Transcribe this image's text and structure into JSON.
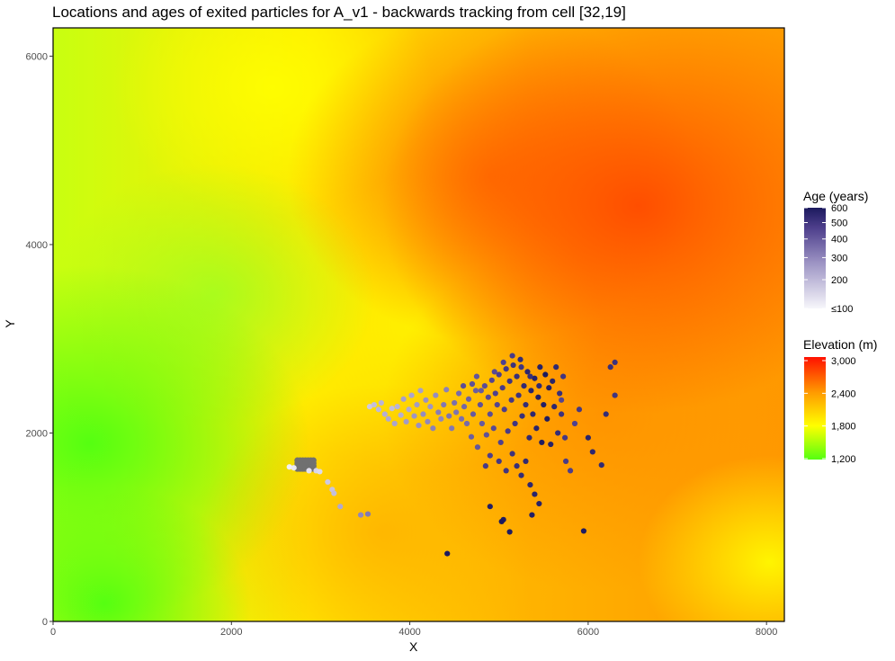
{
  "chart_data": {
    "type": "scatter",
    "title": "Locations and ages of exited particles for A_v1 - backwards tracking from cell [32,19]",
    "xlabel": "X",
    "ylabel": "Y",
    "xlim": [
      0,
      8200
    ],
    "ylim": [
      0,
      6300
    ],
    "x_ticks": [
      0,
      2000,
      4000,
      6000,
      8000
    ],
    "y_ticks": [
      0,
      2000,
      4000,
      6000
    ],
    "grid": false,
    "background_raster": {
      "name": "Elevation (m)",
      "scale_ticks": [
        "1,200",
        "1,800",
        "2,400",
        "3,000"
      ],
      "scale_values": [
        1200,
        1800,
        2400,
        3000
      ],
      "colors": [
        "#55ff11",
        "#ffff00",
        "#ff9900",
        "#ff1100"
      ]
    },
    "point_scale": {
      "name": "Age (years)",
      "scale_ticks": [
        "≤100",
        "200",
        "300",
        "400",
        "500",
        "600"
      ],
      "scale_values": [
        100,
        200,
        300,
        400,
        500,
        600
      ],
      "colors": [
        "#f7f7fb",
        "#1c1a5e"
      ]
    },
    "grey_cluster": {
      "x": 2830,
      "y": 1670
    },
    "points": [
      [
        2650,
        1640,
        110
      ],
      [
        2700,
        1630,
        120
      ],
      [
        2870,
        1600,
        130
      ],
      [
        2950,
        1600,
        150
      ],
      [
        2990,
        1590,
        140
      ],
      [
        3080,
        1480,
        170
      ],
      [
        3130,
        1400,
        180
      ],
      [
        3150,
        1360,
        190
      ],
      [
        3220,
        1220,
        230
      ],
      [
        3450,
        1130,
        300
      ],
      [
        3530,
        1140,
        330
      ],
      [
        3550,
        2280,
        170
      ],
      [
        3600,
        2300,
        190
      ],
      [
        3650,
        2250,
        200
      ],
      [
        3680,
        2320,
        210
      ],
      [
        3720,
        2200,
        220
      ],
      [
        3760,
        2150,
        230
      ],
      [
        3800,
        2260,
        190
      ],
      [
        3830,
        2100,
        240
      ],
      [
        3860,
        2280,
        210
      ],
      [
        3900,
        2190,
        220
      ],
      [
        3930,
        2360,
        250
      ],
      [
        3960,
        2120,
        260
      ],
      [
        3990,
        2250,
        230
      ],
      [
        4020,
        2400,
        240
      ],
      [
        4050,
        2180,
        270
      ],
      [
        4080,
        2300,
        260
      ],
      [
        4100,
        2080,
        280
      ],
      [
        4120,
        2450,
        250
      ],
      [
        4150,
        2200,
        290
      ],
      [
        4180,
        2350,
        280
      ],
      [
        4200,
        2120,
        300
      ],
      [
        4230,
        2280,
        270
      ],
      [
        4260,
        2050,
        310
      ],
      [
        4290,
        2400,
        290
      ],
      [
        4320,
        2220,
        320
      ],
      [
        4350,
        2150,
        300
      ],
      [
        4380,
        2300,
        330
      ],
      [
        4410,
        2460,
        310
      ],
      [
        4440,
        2180,
        340
      ],
      [
        4470,
        2050,
        330
      ],
      [
        4500,
        2320,
        350
      ],
      [
        4520,
        2220,
        340
      ],
      [
        4550,
        2420,
        360
      ],
      [
        4580,
        2150,
        350
      ],
      [
        4610,
        2280,
        370
      ],
      [
        4640,
        2100,
        360
      ],
      [
        4660,
        2360,
        380
      ],
      [
        4690,
        1960,
        390
      ],
      [
        4710,
        2200,
        400
      ],
      [
        4740,
        2450,
        390
      ],
      [
        4760,
        1850,
        410
      ],
      [
        4790,
        2300,
        420
      ],
      [
        4810,
        2100,
        400
      ],
      [
        4840,
        2500,
        430
      ],
      [
        4860,
        1980,
        420
      ],
      [
        4880,
        2380,
        440
      ],
      [
        4900,
        2200,
        430
      ],
      [
        4920,
        2560,
        450
      ],
      [
        4940,
        2050,
        440
      ],
      [
        4960,
        2420,
        460
      ],
      [
        4980,
        2300,
        450
      ],
      [
        5000,
        2620,
        470
      ],
      [
        5020,
        1900,
        460
      ],
      [
        5040,
        2480,
        480
      ],
      [
        5060,
        2250,
        470
      ],
      [
        5080,
        2680,
        490
      ],
      [
        5100,
        2020,
        480
      ],
      [
        5120,
        2550,
        500
      ],
      [
        5140,
        2350,
        490
      ],
      [
        5160,
        2720,
        510
      ],
      [
        5180,
        2100,
        500
      ],
      [
        5200,
        2600,
        520
      ],
      [
        5220,
        2400,
        510
      ],
      [
        5240,
        2780,
        530
      ],
      [
        5260,
        2180,
        520
      ],
      [
        5280,
        2500,
        540
      ],
      [
        5300,
        2300,
        530
      ],
      [
        5320,
        2650,
        550
      ],
      [
        5340,
        1950,
        540
      ],
      [
        5360,
        2450,
        560
      ],
      [
        5380,
        2200,
        550
      ],
      [
        5400,
        2580,
        570
      ],
      [
        5420,
        2050,
        560
      ],
      [
        5440,
        2380,
        580
      ],
      [
        5460,
        2700,
        570
      ],
      [
        5480,
        1900,
        590
      ],
      [
        5500,
        2300,
        580
      ],
      [
        5520,
        2620,
        600
      ],
      [
        5540,
        2150,
        590
      ],
      [
        5560,
        2480,
        580
      ],
      [
        5580,
        1880,
        570
      ],
      [
        5600,
        2550,
        560
      ],
      [
        5620,
        2280,
        550
      ],
      [
        5640,
        2700,
        540
      ],
      [
        5660,
        2000,
        530
      ],
      [
        5680,
        2420,
        520
      ],
      [
        5700,
        2200,
        510
      ],
      [
        5720,
        2600,
        500
      ],
      [
        5740,
        1950,
        490
      ],
      [
        4850,
        1650,
        480
      ],
      [
        4900,
        1760,
        470
      ],
      [
        5000,
        1700,
        490
      ],
      [
        5080,
        1600,
        500
      ],
      [
        5150,
        1780,
        510
      ],
      [
        5200,
        1650,
        520
      ],
      [
        5250,
        1550,
        530
      ],
      [
        5300,
        1700,
        540
      ],
      [
        5350,
        1450,
        550
      ],
      [
        5400,
        1350,
        560
      ],
      [
        5450,
        1250,
        570
      ],
      [
        5370,
        1130,
        580
      ],
      [
        5050,
        1080,
        590
      ],
      [
        5030,
        1060,
        600
      ],
      [
        4900,
        1220,
        580
      ],
      [
        5120,
        950,
        590
      ],
      [
        4420,
        720,
        600
      ],
      [
        5950,
        960,
        590
      ],
      [
        6000,
        1950,
        560
      ],
      [
        6050,
        1800,
        550
      ],
      [
        6150,
        1660,
        540
      ],
      [
        6200,
        2200,
        530
      ],
      [
        6250,
        2700,
        520
      ],
      [
        6300,
        2750,
        510
      ],
      [
        6300,
        2400,
        500
      ],
      [
        5900,
        2250,
        490
      ],
      [
        5750,
        1700,
        480
      ],
      [
        5800,
        1600,
        470
      ],
      [
        5850,
        2100,
        460
      ],
      [
        5700,
        2350,
        450
      ],
      [
        4600,
        2500,
        430
      ],
      [
        4700,
        2520,
        420
      ],
      [
        4750,
        2600,
        410
      ],
      [
        4800,
        2450,
        400
      ],
      [
        4950,
        2650,
        440
      ],
      [
        5050,
        2750,
        460
      ],
      [
        5150,
        2820,
        480
      ],
      [
        5250,
        2700,
        500
      ],
      [
        5350,
        2600,
        520
      ],
      [
        5450,
        2500,
        540
      ]
    ]
  }
}
